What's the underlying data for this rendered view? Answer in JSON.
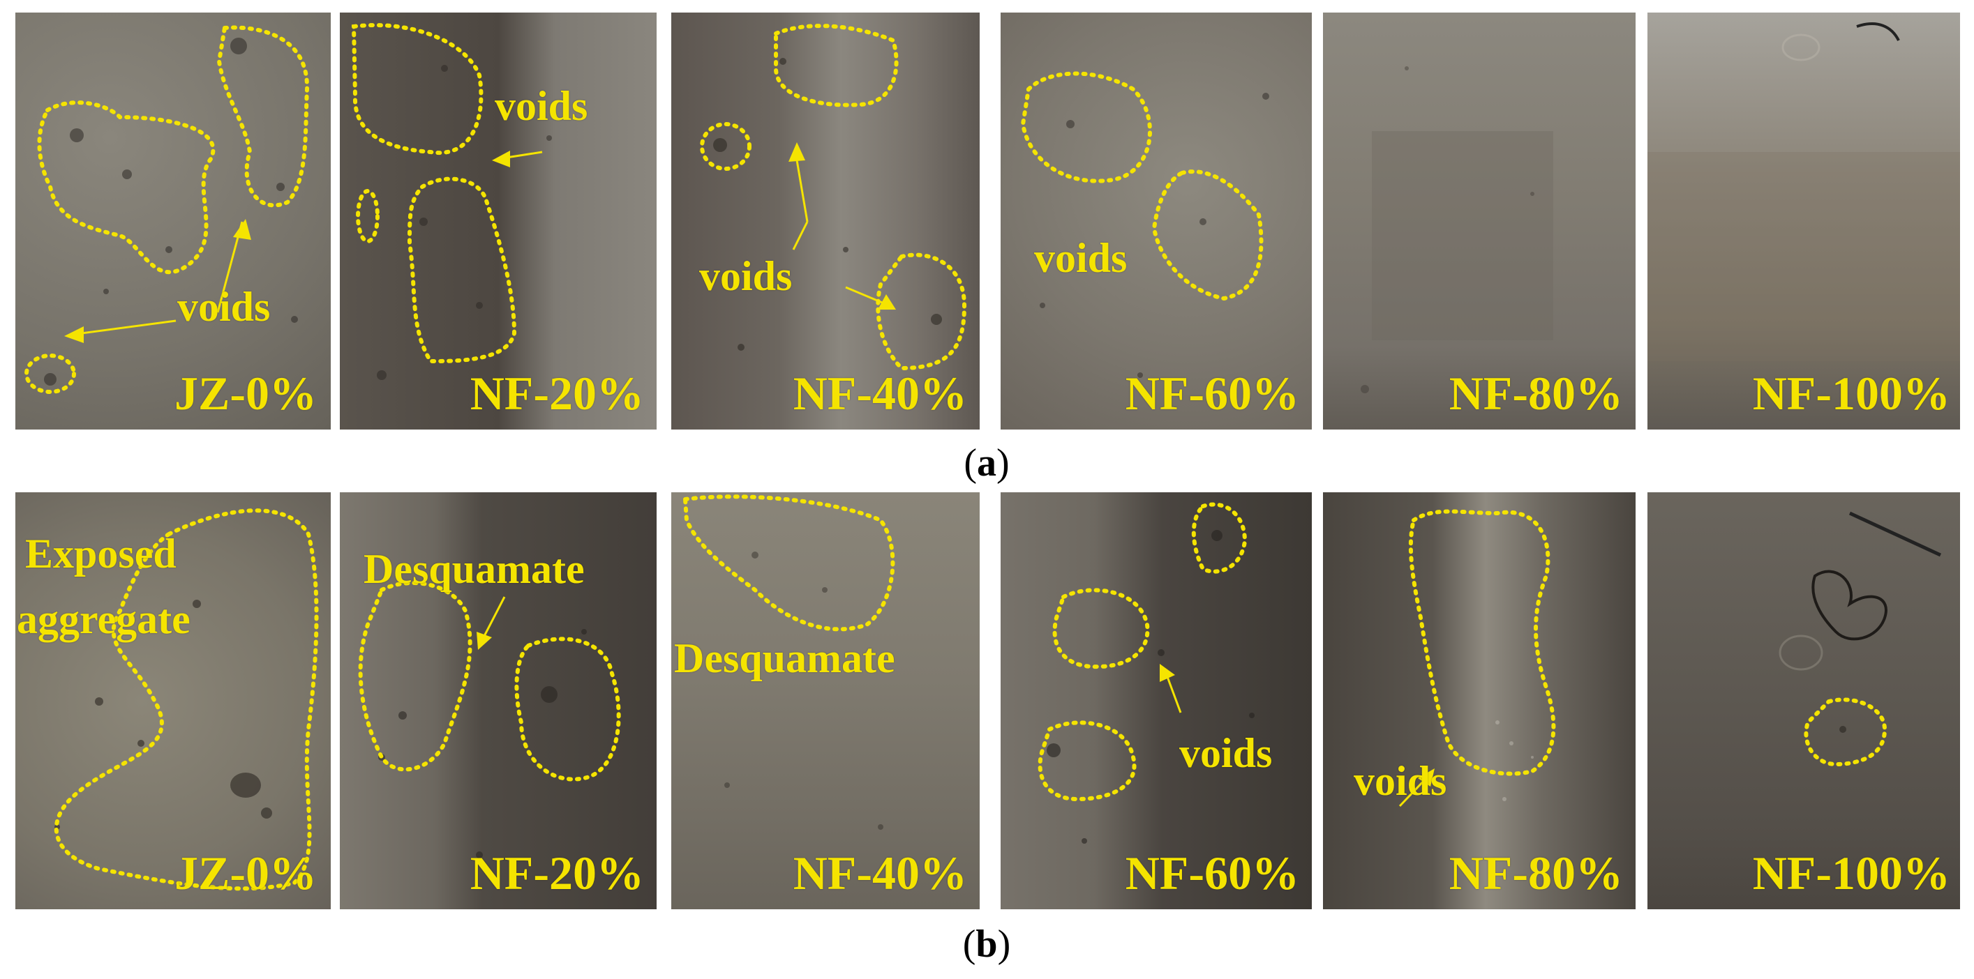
{
  "row_a": {
    "caption_open": "(",
    "caption_letter": "a",
    "caption_close": ")",
    "panels": [
      {
        "label": "JZ-0%",
        "annotations": [
          "voids"
        ]
      },
      {
        "label": "NF-20%",
        "annotations": [
          "voids"
        ]
      },
      {
        "label": "NF-40%",
        "annotations": [
          "voids"
        ]
      },
      {
        "label": "NF-60%",
        "annotations": [
          "voids"
        ]
      },
      {
        "label": "NF-80%",
        "annotations": []
      },
      {
        "label": "NF-100%",
        "annotations": []
      }
    ]
  },
  "row_b": {
    "caption_open": "(",
    "caption_letter": "b",
    "caption_close": ")",
    "panels": [
      {
        "label": "JZ-0%",
        "annotations": [
          "Exposed",
          "aggregate"
        ]
      },
      {
        "label": "NF-20%",
        "annotations": [
          "Desquamate"
        ]
      },
      {
        "label": "NF-40%",
        "annotations": [
          "Desquamate"
        ]
      },
      {
        "label": "NF-60%",
        "annotations": [
          "voids"
        ]
      },
      {
        "label": "NF-80%",
        "annotations": [
          "voids"
        ]
      },
      {
        "label": "NF-100%",
        "annotations": []
      }
    ]
  },
  "colors": {
    "annotation": "#f5e400",
    "caption": "#000000"
  }
}
